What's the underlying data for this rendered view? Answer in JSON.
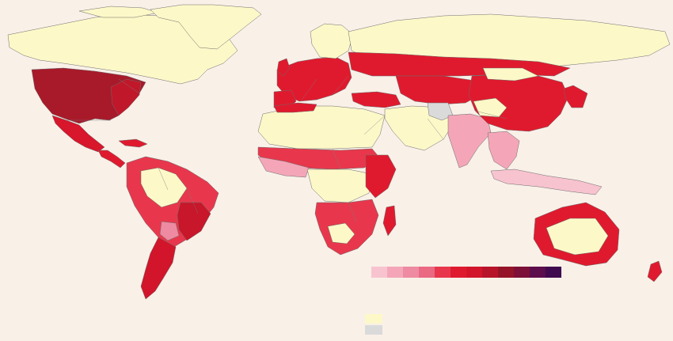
{
  "map": {
    "colors": {
      "background": "#f9f0e8",
      "land_low": "#fdf8c8",
      "no_data": "#dadada",
      "coast": "#6b6b6b"
    },
    "legend_scale": [
      "#f7c3cf",
      "#f4a6b8",
      "#ee8aa1",
      "#ea6983",
      "#e8374c",
      "#e01a2e",
      "#d2152a",
      "#b7142a",
      "#961428",
      "#7d1038",
      "#5c0d4c",
      "#3f0b4e"
    ],
    "legend_extra": [
      "#fdf8c8",
      "#dadada"
    ]
  }
}
